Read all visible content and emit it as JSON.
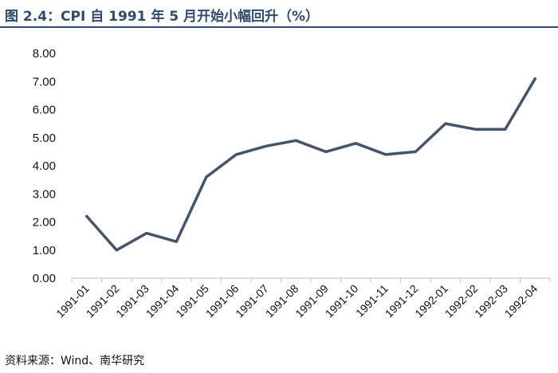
{
  "header": {
    "title": "图 2.4：CPI 自 1991 年 5 月开始小幅回升（%）"
  },
  "footer": {
    "source": "资料来源：Wind、南华研究"
  },
  "colors": {
    "line": "#44546a",
    "title": "#2e4a6e",
    "axis": "#bfbfbf"
  },
  "chart_data": {
    "type": "line",
    "categories": [
      "1991-01",
      "1991-02",
      "1991-03",
      "1991-04",
      "1991-05",
      "1991-06",
      "1991-07",
      "1991-08",
      "1991-09",
      "1991-10",
      "1991-11",
      "1991-12",
      "1992-01",
      "1992-02",
      "1992-03",
      "1992-04"
    ],
    "series": [
      {
        "values": [
          2.2,
          1.0,
          1.6,
          1.3,
          3.6,
          4.4,
          4.7,
          4.9,
          4.5,
          4.8,
          4.4,
          4.5,
          5.5,
          5.3,
          5.3,
          7.1
        ]
      }
    ],
    "yticks": [
      "0.00",
      "1.00",
      "2.00",
      "3.00",
      "4.00",
      "5.00",
      "6.00",
      "7.00",
      "8.00"
    ],
    "ylim": [
      0,
      8
    ],
    "grid": false,
    "legend": "none"
  }
}
